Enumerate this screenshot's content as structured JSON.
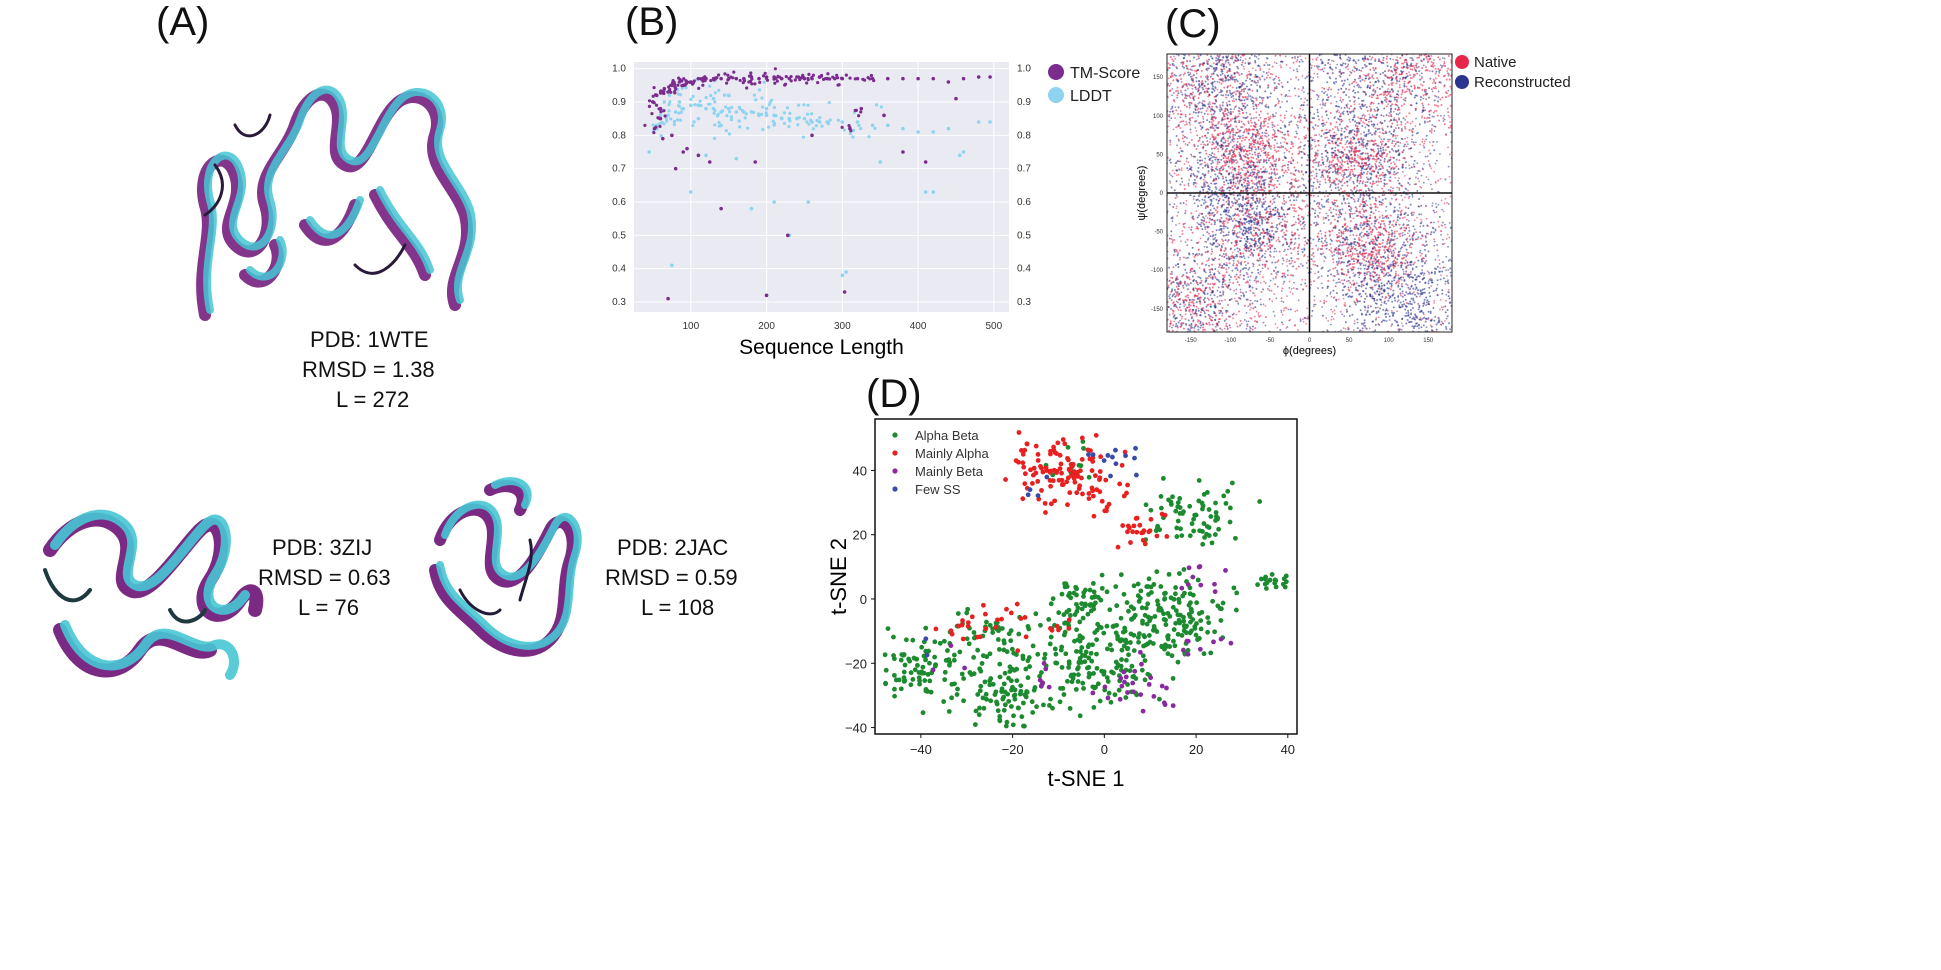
{
  "panels": {
    "a": {
      "label": "(A)"
    },
    "b": {
      "label": "(B)"
    },
    "c": {
      "label": "(C)"
    },
    "d": {
      "label": "(D)"
    }
  },
  "structures": [
    {
      "pdb": "PDB: 1WTE",
      "rmsd": "RMSD = 1.38",
      "length": "L = 272"
    },
    {
      "pdb": "PDB: 3ZIJ",
      "rmsd": "RMSD = 0.63",
      "length": "L = 76"
    },
    {
      "pdb": "PDB: 2JAC",
      "rmsd": "RMSD = 0.59",
      "length": "L = 108"
    }
  ],
  "colors": {
    "purple": "#7b2a84",
    "cyan": "#47c6d4",
    "tm": "#7b2d8f",
    "lddt": "#8ed3ef",
    "native": "#e8254a",
    "reconstructed": "#2a3590",
    "green": "#1c8a2e",
    "red": "#e82020",
    "beta": "#8a2aa0",
    "few": "#3a4aa8"
  },
  "chart_data": [
    {
      "id": "B",
      "type": "scatter",
      "title": "",
      "xlabel": "Sequence Length",
      "ylabel": "",
      "xlim": [
        25,
        520
      ],
      "ylim": [
        0.27,
        1.02
      ],
      "x_ticks": [
        "100",
        "200",
        "300",
        "400",
        "500"
      ],
      "x_tick_values": [
        100,
        200,
        300,
        400,
        500
      ],
      "y_ticks_left": [
        "0.3",
        "0.4",
        "0.5",
        "0.6",
        "0.7",
        "0.8",
        "0.9",
        "1.0"
      ],
      "y_ticks_right": [
        "0.3",
        "0.4",
        "0.5",
        "0.6",
        "0.7",
        "0.8",
        "0.9",
        "1.0"
      ],
      "y_tick_values": [
        0.3,
        0.4,
        0.5,
        0.6,
        0.7,
        0.8,
        0.9,
        1.0
      ],
      "legend": [
        "TM-Score",
        "LDDT"
      ],
      "series": [
        {
          "name": "TM-Score",
          "points": [
            [
              50,
              0.9
            ],
            [
              55,
              0.92
            ],
            [
              60,
              0.88
            ],
            [
              65,
              0.94
            ],
            [
              70,
              0.93
            ],
            [
              75,
              0.95
            ],
            [
              80,
              0.94
            ],
            [
              85,
              0.96
            ],
            [
              90,
              0.95
            ],
            [
              95,
              0.96
            ],
            [
              100,
              0.96
            ],
            [
              110,
              0.97
            ],
            [
              120,
              0.97
            ],
            [
              130,
              0.97
            ],
            [
              140,
              0.97
            ],
            [
              150,
              0.97
            ],
            [
              160,
              0.97
            ],
            [
              170,
              0.97
            ],
            [
              180,
              0.975
            ],
            [
              190,
              0.97
            ],
            [
              200,
              0.975
            ],
            [
              210,
              0.975
            ],
            [
              220,
              0.97
            ],
            [
              230,
              0.97
            ],
            [
              240,
              0.975
            ],
            [
              250,
              0.97
            ],
            [
              260,
              0.97
            ],
            [
              270,
              0.975
            ],
            [
              280,
              0.97
            ],
            [
              290,
              0.97
            ],
            [
              300,
              0.97
            ],
            [
              320,
              0.97
            ],
            [
              340,
              0.97
            ],
            [
              360,
              0.97
            ],
            [
              380,
              0.97
            ],
            [
              400,
              0.97
            ],
            [
              420,
              0.97
            ],
            [
              440,
              0.96
            ],
            [
              460,
              0.97
            ],
            [
              480,
              0.975
            ],
            [
              495,
              0.975
            ],
            [
              52,
              0.82
            ],
            [
              60,
              0.85
            ],
            [
              75,
              0.8
            ],
            [
              90,
              0.75
            ],
            [
              110,
              0.74
            ],
            [
              125,
              0.72
            ],
            [
              140,
              0.58
            ],
            [
              185,
              0.72
            ],
            [
              200,
              0.32
            ],
            [
              228,
              0.5
            ],
            [
              260,
              0.8
            ],
            [
              303,
              0.33
            ],
            [
              310,
              0.82
            ],
            [
              325,
              0.88
            ],
            [
              355,
              0.86
            ],
            [
              380,
              0.75
            ],
            [
              410,
              0.72
            ],
            [
              450,
              0.91
            ],
            [
              70,
              0.31
            ],
            [
              80,
              0.7
            ],
            [
              95,
              0.76
            ],
            [
              63,
              0.79
            ]
          ]
        },
        {
          "name": "LDDT",
          "points": [
            [
              45,
              0.75
            ],
            [
              55,
              0.83
            ],
            [
              60,
              0.86
            ],
            [
              70,
              0.86
            ],
            [
              80,
              0.87
            ],
            [
              90,
              0.88
            ],
            [
              100,
              0.89
            ],
            [
              110,
              0.89
            ],
            [
              120,
              0.88
            ],
            [
              130,
              0.88
            ],
            [
              140,
              0.87
            ],
            [
              150,
              0.88
            ],
            [
              160,
              0.87
            ],
            [
              170,
              0.87
            ],
            [
              180,
              0.87
            ],
            [
              190,
              0.86
            ],
            [
              200,
              0.86
            ],
            [
              210,
              0.86
            ],
            [
              220,
              0.85
            ],
            [
              230,
              0.85
            ],
            [
              240,
              0.85
            ],
            [
              250,
              0.85
            ],
            [
              260,
              0.84
            ],
            [
              270,
              0.84
            ],
            [
              280,
              0.84
            ],
            [
              300,
              0.84
            ],
            [
              320,
              0.84
            ],
            [
              340,
              0.83
            ],
            [
              360,
              0.83
            ],
            [
              380,
              0.82
            ],
            [
              400,
              0.81
            ],
            [
              420,
              0.81
            ],
            [
              440,
              0.82
            ],
            [
              460,
              0.75
            ],
            [
              480,
              0.84
            ],
            [
              495,
              0.84
            ],
            [
              75,
              0.41
            ],
            [
              100,
              0.63
            ],
            [
              120,
              0.74
            ],
            [
              160,
              0.73
            ],
            [
              180,
              0.58
            ],
            [
              210,
              0.6
            ],
            [
              230,
              0.5
            ],
            [
              255,
              0.6
            ],
            [
              300,
              0.38
            ],
            [
              305,
              0.39
            ],
            [
              350,
              0.72
            ],
            [
              410,
              0.63
            ],
            [
              420,
              0.63
            ],
            [
              455,
              0.74
            ],
            [
              65,
              0.9
            ],
            [
              85,
              0.9
            ],
            [
              130,
              0.91
            ],
            [
              150,
              0.92
            ],
            [
              110,
              0.85
            ],
            [
              140,
              0.83
            ],
            [
              200,
              0.88
            ]
          ]
        }
      ]
    },
    {
      "id": "C",
      "type": "scatter",
      "title": "",
      "xlabel": "ϕ(degrees)",
      "ylabel": "ψ(degrees)",
      "xlim": [
        -180,
        180
      ],
      "ylim": [
        -180,
        180
      ],
      "x_ticks": [
        "-150",
        "-100",
        "-50",
        "0",
        "50",
        "100",
        "150"
      ],
      "x_tick_values": [
        -150,
        -100,
        -50,
        0,
        50,
        100,
        150
      ],
      "y_ticks": [
        "-150",
        "-100",
        "-50",
        "0",
        "50",
        "100",
        "150"
      ],
      "y_tick_values": [
        -150,
        -100,
        -50,
        0,
        50,
        100,
        150
      ],
      "legend": [
        "Native",
        "Reconstructed"
      ],
      "series": [
        {
          "name": "Native",
          "clusters": [
            [
              -120,
              140,
              45
            ],
            [
              -70,
              -40,
              40
            ],
            [
              -80,
              50,
              30
            ],
            [
              60,
              45,
              30
            ],
            [
              75,
              -70,
              30
            ],
            [
              -150,
              -150,
              40
            ],
            [
              130,
              160,
              40
            ]
          ]
        },
        {
          "name": "Reconstructed",
          "clusters": [
            [
              -110,
              150,
              35
            ],
            [
              -75,
              -40,
              30
            ],
            [
              -100,
              30,
              40
            ],
            [
              80,
              150,
              45
            ],
            [
              -150,
              -140,
              45
            ],
            [
              120,
              -150,
              40
            ],
            [
              60,
              40,
              40
            ],
            [
              80,
              -90,
              40
            ]
          ]
        }
      ]
    },
    {
      "id": "D",
      "type": "scatter",
      "title": "",
      "xlabel": "t-SNE 1",
      "ylabel": "t-SNE 2",
      "xlim": [
        -50,
        42
      ],
      "ylim": [
        -42,
        56
      ],
      "x_ticks": [
        "−40",
        "−20",
        "0",
        "20",
        "40"
      ],
      "x_tick_values": [
        -40,
        -20,
        0,
        20,
        40
      ],
      "y_ticks": [
        "−40",
        "−20",
        "0",
        "20",
        "40"
      ],
      "y_tick_values": [
        -40,
        -20,
        0,
        20,
        40
      ],
      "legend": [
        "Alpha Beta",
        "Mainly Alpha",
        "Mainly Beta",
        "Few SS"
      ],
      "series": [
        {
          "name": "Alpha Beta",
          "clusters": [
            [
              -40,
              -22,
              5,
              90
            ],
            [
              -20,
              -30,
              6,
              110
            ],
            [
              -5,
              -15,
              8,
              130
            ],
            [
              15,
              -5,
              7,
              160
            ],
            [
              18,
              25,
              5,
              70
            ],
            [
              -5,
              0,
              4,
              40
            ],
            [
              37,
              6,
              2,
              20
            ],
            [
              2,
              -25,
              5,
              50
            ],
            [
              -25,
              -10,
              4,
              40
            ],
            [
              -8,
              42,
              3,
              10
            ]
          ]
        },
        {
          "name": "Mainly Alpha",
          "clusters": [
            [
              -8,
              40,
              6,
              120
            ],
            [
              7,
              22,
              3,
              25
            ],
            [
              -22,
              -8,
              4,
              15
            ],
            [
              -30,
              -10,
              3,
              10
            ],
            [
              -10,
              -10,
              2,
              6
            ]
          ]
        },
        {
          "name": "Mainly Beta",
          "clusters": [
            [
              8,
              -27,
              4,
              25
            ],
            [
              22,
              5,
              3,
              10
            ],
            [
              -15,
              -25,
              3,
              6
            ],
            [
              -35,
              -20,
              2,
              3
            ],
            [
              22,
              -15,
              3,
              8
            ]
          ]
        },
        {
          "name": "Few SS",
          "clusters": [
            [
              2,
              44,
              3,
              12
            ],
            [
              -15,
              30,
              3,
              4
            ],
            [
              -38,
              -15,
              2,
              2
            ]
          ]
        }
      ]
    }
  ]
}
